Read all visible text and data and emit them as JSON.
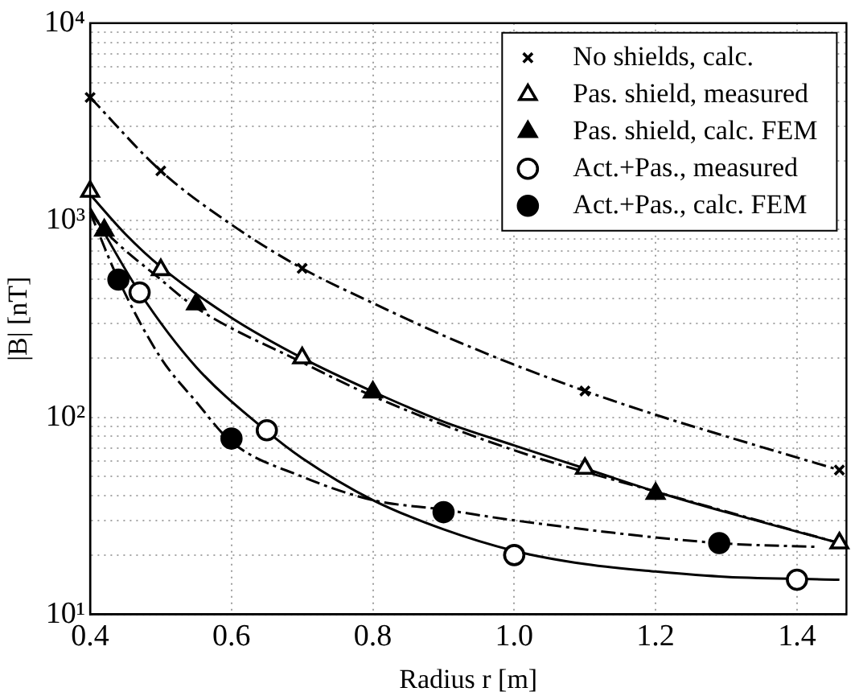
{
  "chart_data": {
    "type": "scatter",
    "xlabel": "Radius r [m]",
    "ylabel": "|B| [nT]",
    "log": "y",
    "grid": true,
    "legend": "top right",
    "xlim": [
      0.4,
      1.47
    ],
    "xticks": [
      {
        "value": 0.4,
        "label": "0.4"
      },
      {
        "value": 0.6,
        "label": "0.6"
      },
      {
        "value": 0.8,
        "label": "0.8"
      },
      {
        "value": 1.0,
        "label": "1.0"
      },
      {
        "value": 1.2,
        "label": "1.2"
      },
      {
        "value": 1.4,
        "label": "1.4"
      }
    ],
    "ylim": [
      10,
      10000
    ],
    "yticks": [
      {
        "value": 10,
        "label": "10¹"
      },
      {
        "value": 20,
        "label": null
      },
      {
        "value": 30,
        "label": null
      },
      {
        "value": 40,
        "label": null
      },
      {
        "value": 50,
        "label": null
      },
      {
        "value": 60,
        "label": null
      },
      {
        "value": 70,
        "label": null
      },
      {
        "value": 80,
        "label": null
      },
      {
        "value": 90,
        "label": null
      },
      {
        "value": 100,
        "label": "10²"
      },
      {
        "value": 200,
        "label": null
      },
      {
        "value": 300,
        "label": null
      },
      {
        "value": 400,
        "label": null
      },
      {
        "value": 500,
        "label": null
      },
      {
        "value": 600,
        "label": null
      },
      {
        "value": 700,
        "label": null
      },
      {
        "value": 800,
        "label": null
      },
      {
        "value": 900,
        "label": null
      },
      {
        "value": 1000,
        "label": "10³"
      },
      {
        "value": 2000,
        "label": null
      },
      {
        "value": 3000,
        "label": null
      },
      {
        "value": 4000,
        "label": null
      },
      {
        "value": 5000,
        "label": null
      },
      {
        "value": 6000,
        "label": null
      },
      {
        "value": 7000,
        "label": null
      },
      {
        "value": 8000,
        "label": null
      },
      {
        "value": 9000,
        "label": null
      },
      {
        "value": 10000,
        "label": "10⁴"
      }
    ],
    "series": [
      {
        "name": "No shields, calc.",
        "marker": "cross",
        "color": "#000000",
        "x": [
          0.4,
          0.5,
          0.7,
          1.1,
          1.46
        ],
        "values": [
          4200,
          1780,
          570,
          136,
          54
        ]
      },
      {
        "name": "Pas. shield, measured",
        "marker": "triangle",
        "color": "#ffffff",
        "x": [
          0.4,
          0.5,
          0.7,
          1.1,
          1.46
        ],
        "values": [
          1400,
          560,
          200,
          55,
          23
        ]
      },
      {
        "name": "Pas. shield, calc. FEM",
        "marker": "triangle",
        "color": "#000000",
        "x": [
          0.42,
          0.55,
          0.8,
          1.2
        ],
        "values": [
          890,
          375,
          134,
          41
        ]
      },
      {
        "name": "Act.+Pas., measured",
        "marker": "circle",
        "color": "#ffffff",
        "x": [
          0.47,
          0.65,
          1.0,
          1.4
        ],
        "values": [
          430,
          86,
          20,
          15
        ]
      },
      {
        "name": "Act.+Pas., calc. FEM",
        "marker": "circle",
        "color": "#000000",
        "x": [
          0.44,
          0.6,
          0.9,
          1.29
        ],
        "values": [
          500,
          78,
          33,
          23
        ]
      },
      {
        "type": "line",
        "line_style": "dashed",
        "color": "#000000",
        "x": [
          0.4,
          0.5,
          0.6,
          0.7,
          0.8,
          0.9,
          1.0,
          1.1,
          1.2,
          1.3,
          1.46
        ],
        "values": [
          4200,
          1780,
          950,
          570,
          380,
          260,
          185,
          136,
          103,
          80,
          54
        ]
      },
      {
        "type": "line",
        "line_style": "solid",
        "color": "#000000",
        "x": [
          0.4,
          0.45,
          0.5,
          0.6,
          0.7,
          0.8,
          0.9,
          1.0,
          1.1,
          1.2,
          1.3,
          1.46
        ],
        "values": [
          1350,
          850,
          580,
          320,
          200,
          135,
          95,
          72,
          55,
          42,
          33,
          23
        ]
      },
      {
        "type": "line",
        "line_style": "dashed",
        "color": "#000000",
        "x": [
          0.4,
          0.42,
          0.5,
          0.55,
          0.7,
          0.8,
          1.0,
          1.2,
          1.46
        ],
        "values": [
          1100,
          890,
          500,
          360,
          190,
          128,
          68,
          42,
          23
        ]
      },
      {
        "type": "line",
        "line_style": "solid",
        "color": "#000000",
        "x": [
          0.4,
          0.47,
          0.55,
          0.65,
          0.7,
          0.8,
          0.9,
          1.0,
          1.1,
          1.2,
          1.3,
          1.46
        ],
        "values": [
          1150,
          430,
          180,
          85,
          62,
          38,
          27,
          21,
          18,
          16.5,
          15.5,
          15
        ]
      },
      {
        "type": "line",
        "line_style": "dashed",
        "color": "#000000",
        "x": [
          0.4,
          0.44,
          0.5,
          0.55,
          0.6,
          0.7,
          0.8,
          0.9,
          1.0,
          1.29,
          1.43
        ],
        "values": [
          1100,
          500,
          200,
          120,
          75,
          50,
          38,
          34,
          30,
          23,
          22
        ]
      }
    ]
  }
}
